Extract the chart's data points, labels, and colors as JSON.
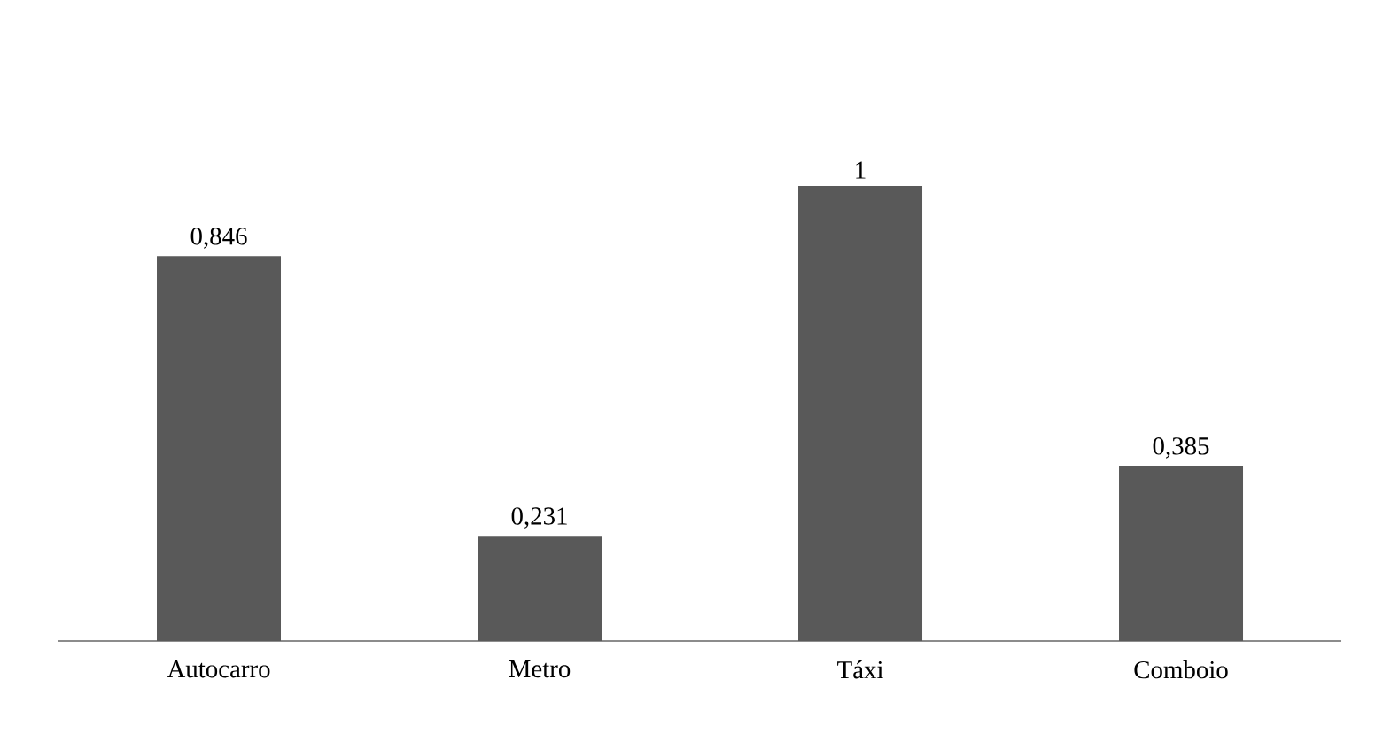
{
  "chart_data": {
    "type": "bar",
    "categories": [
      "Autocarro",
      "Metro",
      "Táxi",
      "Comboio"
    ],
    "values": [
      0.846,
      0.231,
      1,
      0.385
    ],
    "value_labels": [
      "0,846",
      "0,231",
      "1",
      "0,385"
    ],
    "color": "#595959"
  }
}
